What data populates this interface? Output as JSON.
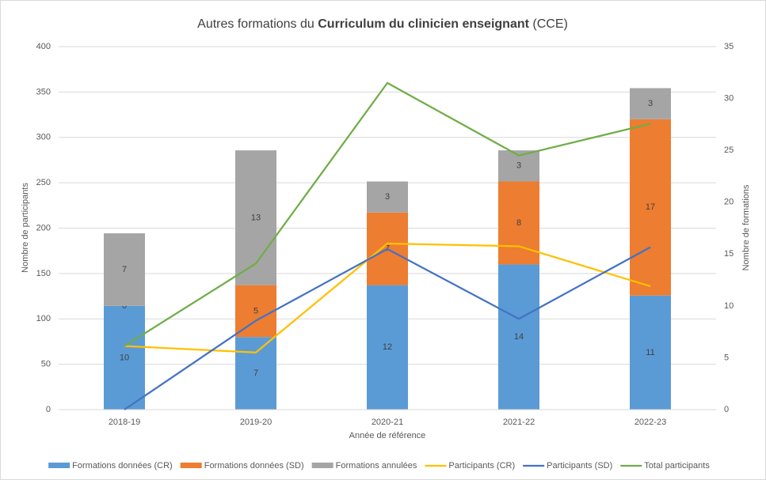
{
  "chart_data": {
    "type": "combo",
    "title_parts": [
      "Autres formations du ",
      "Curriculum du clinicien enseignant",
      " (CCE)"
    ],
    "x_label": "Année de référence",
    "y_label": "Nombre de participants",
    "y2_label": "Nombre de formations",
    "categories": [
      "2018-19",
      "2019-20",
      "2020-21",
      "2021-22",
      "2022-23"
    ],
    "ylim": [
      0,
      400
    ],
    "yticks": [
      0,
      50,
      100,
      150,
      200,
      250,
      300,
      350,
      400
    ],
    "y2lim": [
      0,
      35
    ],
    "y2ticks": [
      0,
      5,
      10,
      15,
      20,
      25,
      30,
      35
    ],
    "grid": true,
    "legend": "bottom",
    "series": [
      {
        "name": "Formations données (CR)",
        "type": "bar",
        "axis": "y2",
        "color": "#5b9bd5",
        "values": [
          10,
          7,
          12,
          14,
          11
        ]
      },
      {
        "name": "Formations données (SD)",
        "type": "bar",
        "axis": "y2",
        "color": "#ed7d31",
        "values": [
          0,
          5,
          7,
          8,
          17
        ]
      },
      {
        "name": "Formations annulées",
        "type": "bar",
        "axis": "y2",
        "color": "#a5a5a5",
        "values": [
          7,
          13,
          3,
          3,
          3
        ]
      },
      {
        "name": "Participants (CR)",
        "type": "line",
        "color": "#ffc000",
        "values": [
          70,
          63,
          183,
          180,
          136
        ]
      },
      {
        "name": "Participants (SD)",
        "type": "line",
        "color": "#4472c4",
        "values": [
          0,
          98,
          177,
          100,
          179
        ]
      },
      {
        "name": "Total participants",
        "type": "line",
        "color": "#70ad47",
        "values": [
          70,
          161,
          360,
          280,
          315
        ]
      }
    ]
  }
}
